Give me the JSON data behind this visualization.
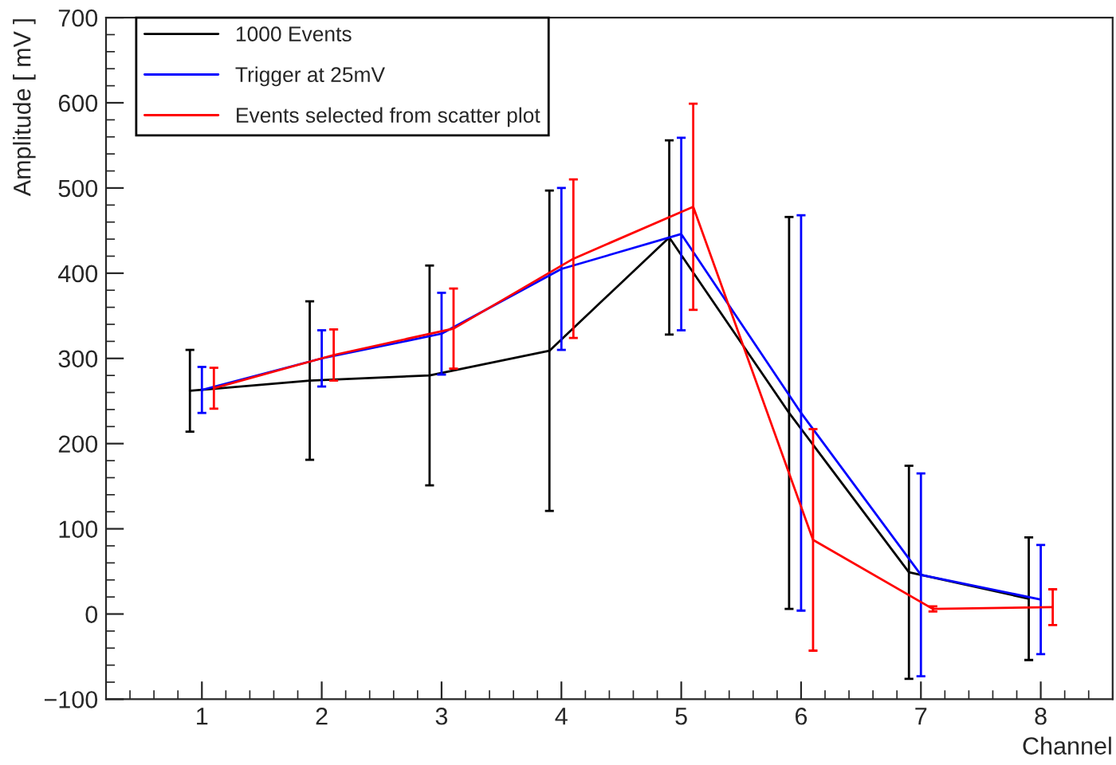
{
  "chart_data": {
    "type": "line",
    "xlabel": "Channel",
    "ylabel": "Amplitude [ mV ]",
    "xlim": [
      0.2,
      8.6
    ],
    "xticks": [
      1,
      2,
      3,
      4,
      5,
      6,
      7,
      8
    ],
    "ylim": [
      -100,
      700
    ],
    "yticks": [
      {
        "value": -100,
        "label": "−100"
      },
      0,
      100,
      200,
      300,
      400,
      500,
      600,
      700
    ],
    "grid": false,
    "legend": "top left",
    "marker": "none",
    "line_style": "solid",
    "series": [
      {
        "name": "1000 Events",
        "color": "#000000",
        "x": [
          0.9,
          1.9,
          2.9,
          3.9,
          4.9,
          5.9,
          6.9,
          7.9
        ],
        "values": [
          262,
          274,
          280,
          309,
          442,
          236,
          49,
          18
        ],
        "errors": [
          48,
          93,
          129,
          188,
          114,
          230,
          125,
          72
        ]
      },
      {
        "name": "Trigger at 25mV",
        "color": "#0000ff",
        "x": [
          1,
          2,
          3,
          4,
          5,
          6,
          7,
          8
        ],
        "values": [
          263,
          300,
          329,
          405,
          446,
          236,
          46,
          17
        ],
        "errors": [
          27,
          33,
          48,
          95,
          113,
          232,
          119,
          64
        ]
      },
      {
        "name": "Events selected from scatter plot",
        "color": "#ff0000",
        "x": [
          1.1,
          2.1,
          3.1,
          4.1,
          5.1,
          6.1,
          7.1,
          8.1
        ],
        "values": [
          265,
          304,
          335,
          417,
          478,
          87,
          6,
          8
        ],
        "errors": [
          24,
          30,
          47,
          93,
          121,
          130,
          3,
          21
        ]
      }
    ]
  }
}
